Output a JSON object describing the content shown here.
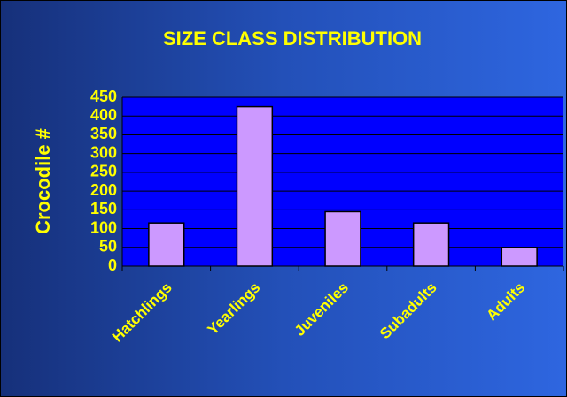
{
  "chart_data": {
    "type": "bar",
    "title": "SIZE CLASS DISTRIBUTION",
    "y_label": "Crocodile #",
    "categories": [
      "Hatchlings",
      "Yearlings",
      "Juveniles",
      "Subadults",
      "Adults"
    ],
    "values": [
      115,
      425,
      145,
      115,
      50
    ],
    "color": "#cc99ff",
    "ylim": [
      0,
      450
    ],
    "yticks": [
      0,
      50,
      100,
      150,
      200,
      250,
      300,
      350,
      400,
      450
    ],
    "grid": true
  }
}
